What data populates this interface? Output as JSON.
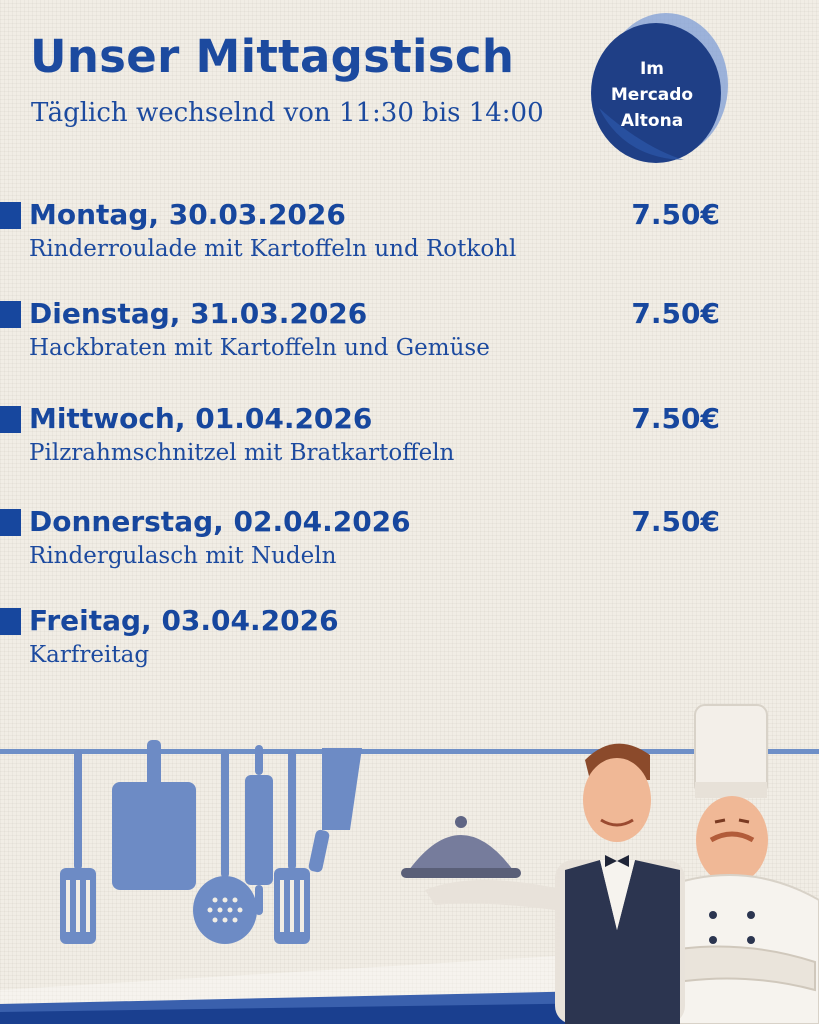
{
  "header": {
    "title": "Unser Mittagstisch",
    "subtitle": "Täglich wechselnd von 11:30 bis 14:00"
  },
  "badge": {
    "line1": "Im",
    "line2": "Mercado",
    "line3": "Altona"
  },
  "menu": [
    {
      "day": "Montag, 30.03.2026",
      "dish": "Rinderroulade mit Kartoffeln und Rotkohl",
      "price": "7.50€"
    },
    {
      "day": "Dienstag, 31.03.2026",
      "dish": "Hackbraten mit Kartoffeln und Gemüse",
      "price": "7.50€"
    },
    {
      "day": "Mittwoch, 01.04.2026",
      "dish": "Pilzrahmschnitzel mit Bratkartoffeln",
      "price": "7.50€"
    },
    {
      "day": "Donnerstag, 02.04.2026",
      "dish": "Rindergulasch mit Nudeln",
      "price": "7.50€"
    },
    {
      "day": "Freitag, 03.04.2026",
      "dish": "Karfreitag",
      "price": ""
    }
  ],
  "colors": {
    "primary": "#17479e",
    "badge": "#1f3f86",
    "tools": "#6d8bc5",
    "background": "#f1ede5"
  }
}
